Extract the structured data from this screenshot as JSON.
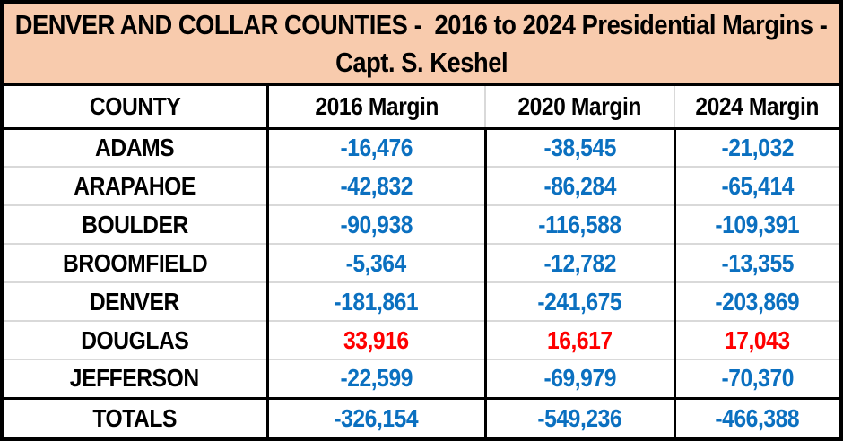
{
  "header": {
    "title_line1": "DENVER AND COLLAR COUNTIES -  2016 to 2024 Presidential Margins -",
    "title_line2": "Capt. S. Keshel"
  },
  "table": {
    "columns": [
      "COUNTY",
      "2016 Margin",
      "2020 Margin",
      "2024 Margin"
    ],
    "rows": [
      {
        "county": "ADAMS",
        "m2016": "-16,476",
        "m2020": "-38,545",
        "m2024": "-21,032",
        "value_color": "#0B70C0"
      },
      {
        "county": "ARAPAHOE",
        "m2016": "-42,832",
        "m2020": "-86,284",
        "m2024": "-65,414",
        "value_color": "#0B70C0"
      },
      {
        "county": "BOULDER",
        "m2016": "-90,938",
        "m2020": "-116,588",
        "m2024": "-109,391",
        "value_color": "#0B70C0"
      },
      {
        "county": "BROOMFIELD",
        "m2016": "-5,364",
        "m2020": "-12,782",
        "m2024": "-13,355",
        "value_color": "#0B70C0"
      },
      {
        "county": "DENVER",
        "m2016": "-181,861",
        "m2020": "-241,675",
        "m2024": "-203,869",
        "value_color": "#0B70C0"
      },
      {
        "county": "DOUGLAS",
        "m2016": "33,916",
        "m2020": "16,617",
        "m2024": "17,043",
        "value_color": "#FF0000"
      },
      {
        "county": "JEFFERSON",
        "m2016": "-22,599",
        "m2020": "-69,979",
        "m2024": "-70,370",
        "value_color": "#0B70C0"
      }
    ],
    "totals": {
      "label": "TOTALS",
      "m2016": "-326,154",
      "m2020": "-549,236",
      "m2024": "-466,388",
      "value_color": "#0B70C0"
    }
  },
  "colors": {
    "title_band_bg": "#F8CBAD",
    "negative_value": "#0B70C0",
    "positive_value": "#FF0000",
    "row_separator": "#D9D9D9",
    "section_border": "#000000"
  },
  "chart_data": {
    "type": "table",
    "title": "DENVER AND COLLAR COUNTIES - 2016 to 2024 Presidential Margins - Capt. S. Keshel",
    "categories": [
      "ADAMS",
      "ARAPAHOE",
      "BOULDER",
      "BROOMFIELD",
      "DENVER",
      "DOUGLAS",
      "JEFFERSON",
      "TOTALS"
    ],
    "series": [
      {
        "name": "2016 Margin",
        "values": [
          -16476,
          -42832,
          -90938,
          -5364,
          -181861,
          33916,
          -22599,
          -326154
        ]
      },
      {
        "name": "2020 Margin",
        "values": [
          -38545,
          -86284,
          -116588,
          -12782,
          -241675,
          16617,
          -69979,
          -549236
        ]
      },
      {
        "name": "2024 Margin",
        "values": [
          -21032,
          -65414,
          -109391,
          -13355,
          -203869,
          17043,
          -70370,
          -466388
        ]
      }
    ],
    "value_color_rule": "negative margins shown blue, positive margins shown red"
  }
}
